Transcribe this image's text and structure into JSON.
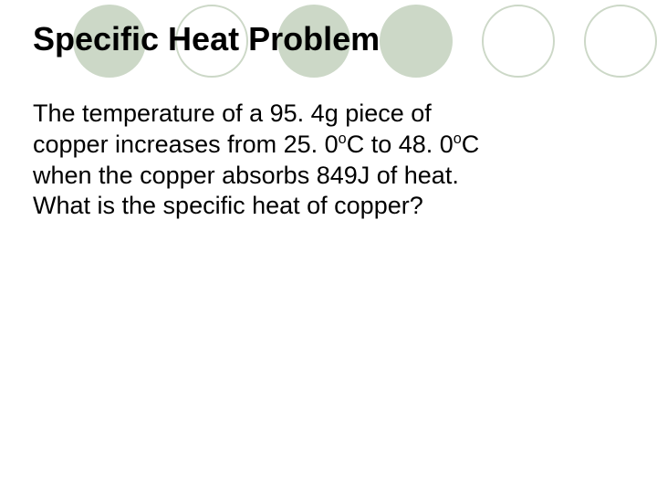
{
  "title": "Specific Heat Problem",
  "body": {
    "line1": "The temperature of a 95. 4g piece of",
    "line2_a": "copper increases  from 25. 0",
    "line2_deg1": "o",
    "line2_b": "C to 48. 0",
    "line2_deg2": "o",
    "line2_c": "C",
    "line3": "when the copper absorbs 849J of heat.",
    "line4": "What is the specific heat of copper?"
  },
  "circles": {
    "fill_color": "#ccd8c7",
    "outline_color": "#ccd8c7",
    "pattern": [
      {
        "type": "filled"
      },
      {
        "type": "outline"
      },
      {
        "type": "filled"
      },
      {
        "type": "filled"
      },
      {
        "type": "outline"
      },
      {
        "type": "outline"
      }
    ]
  },
  "background_color": "#ffffff",
  "title_fontsize": 36,
  "body_fontsize": 27
}
